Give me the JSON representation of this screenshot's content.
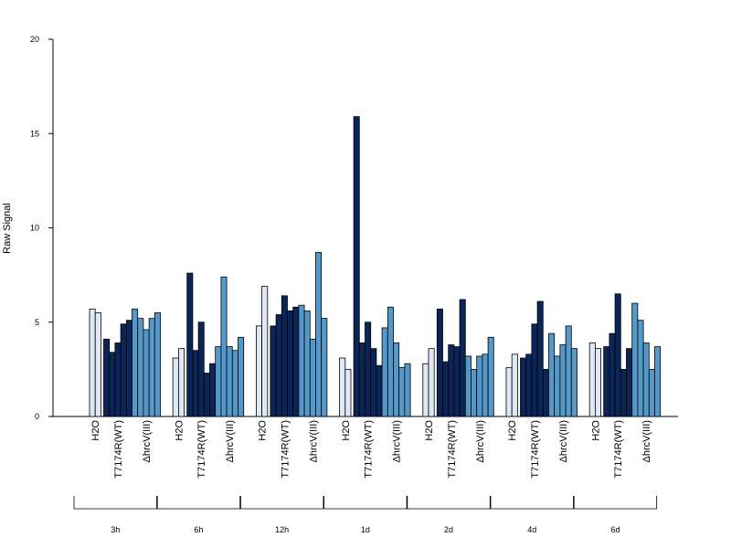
{
  "chart_data": {
    "type": "bar",
    "ylabel": "Raw Signal",
    "ylim": [
      0,
      20
    ],
    "yticks": [
      "0",
      "5",
      "10",
      "15",
      "20"
    ],
    "colors": {
      "H2O": "#dfe9f6",
      "T7174R(WT)": "#0c2557",
      "ΔhrcV(III)": "#5499c9"
    },
    "timepoints": [
      "3h",
      "6h",
      "12h",
      "1d",
      "2d",
      "4d",
      "6d"
    ],
    "groups": [
      "H2O",
      "T7174R(WT)",
      "ΔhrcV(III)"
    ],
    "data": [
      {
        "time": "3h",
        "H2O": [
          5.7,
          5.5
        ],
        "T7174R(WT)": [
          4.1,
          3.4,
          3.9,
          4.9,
          5.1
        ],
        "ΔhrcV(III)": [
          5.7,
          5.2,
          4.6,
          5.2,
          5.5
        ]
      },
      {
        "time": "6h",
        "H2O": [
          3.1,
          3.6
        ],
        "T7174R(WT)": [
          7.6,
          3.5,
          5.0,
          2.3,
          2.8
        ],
        "ΔhrcV(III)": [
          3.7,
          7.4,
          3.7,
          3.5,
          4.2
        ]
      },
      {
        "time": "12h",
        "H2O": [
          4.8,
          6.9
        ],
        "T7174R(WT)": [
          4.8,
          5.4,
          6.4,
          5.6,
          5.8
        ],
        "ΔhrcV(III)": [
          5.9,
          5.6,
          4.1,
          8.7,
          5.2
        ]
      },
      {
        "time": "1d",
        "H2O": [
          3.1,
          2.5
        ],
        "T7174R(WT)": [
          15.9,
          3.9,
          5.0,
          3.6,
          2.7
        ],
        "ΔhrcV(III)": [
          4.7,
          5.8,
          3.9,
          2.6,
          2.8
        ]
      },
      {
        "time": "2d",
        "H2O": [
          2.8,
          3.6
        ],
        "T7174R(WT)": [
          5.7,
          2.9,
          3.8,
          3.7,
          6.2
        ],
        "ΔhrcV(III)": [
          3.2,
          2.5,
          3.2,
          3.3,
          4.2
        ]
      },
      {
        "time": "4d",
        "H2O": [
          2.6,
          3.3
        ],
        "T7174R(WT)": [
          3.1,
          3.3,
          4.9,
          6.1,
          2.5
        ],
        "ΔhrcV(III)": [
          4.4,
          3.2,
          3.8,
          4.8,
          3.6
        ]
      },
      {
        "time": "6d",
        "H2O": [
          3.9,
          3.6
        ],
        "T7174R(WT)": [
          3.7,
          4.4,
          6.5,
          2.5,
          3.6
        ],
        "ΔhrcV(III)": [
          6.0,
          5.1,
          3.9,
          2.5,
          3.7
        ]
      }
    ]
  }
}
